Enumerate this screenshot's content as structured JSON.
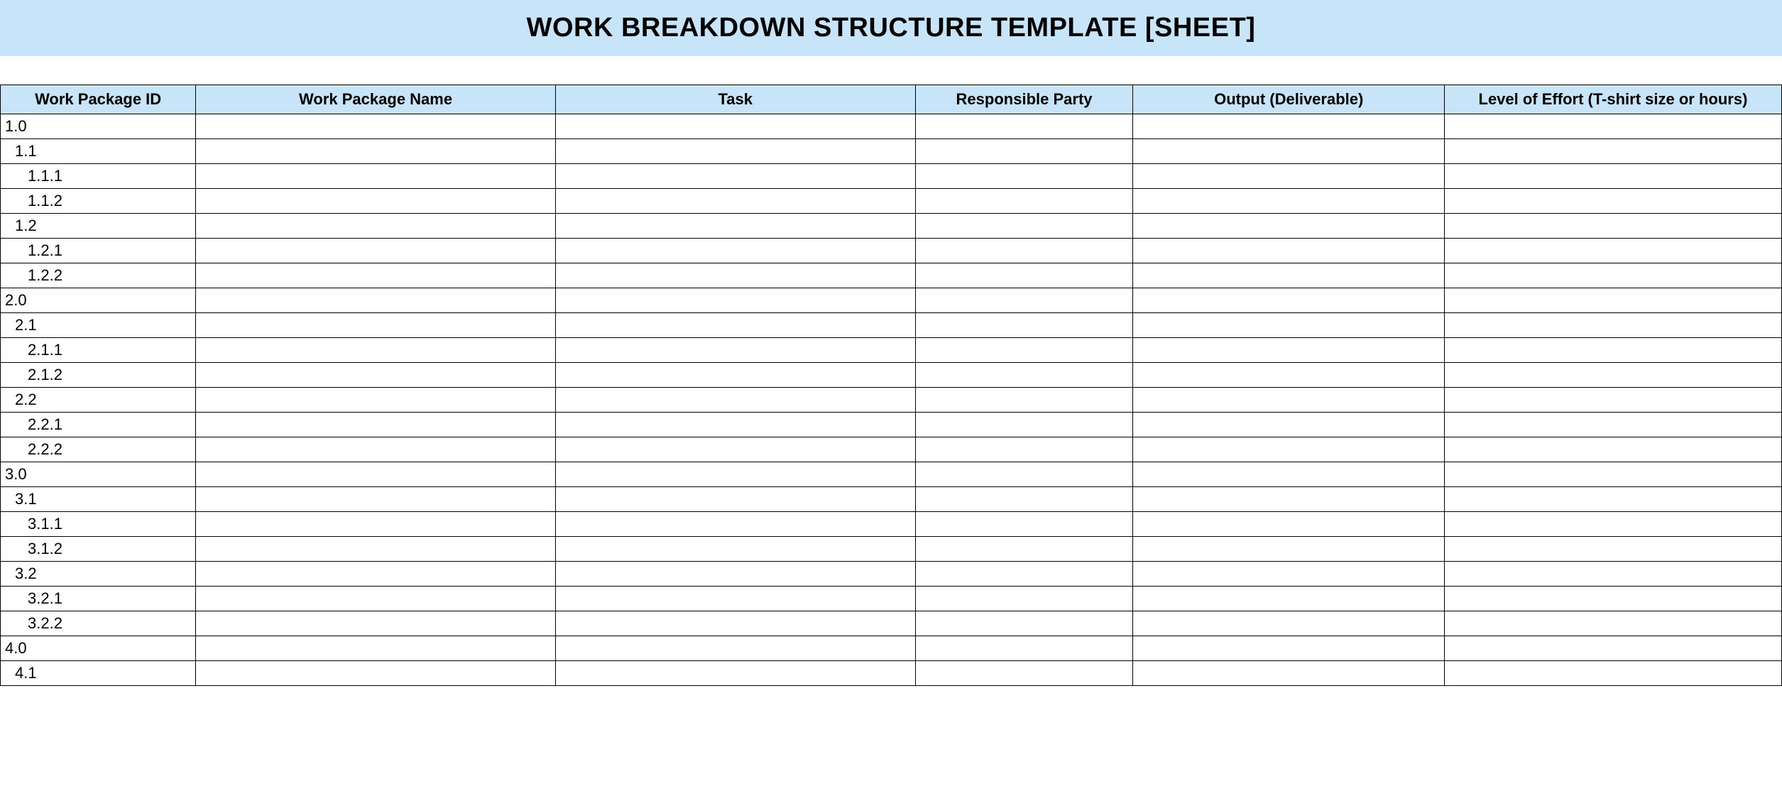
{
  "title": "WORK BREAKDOWN STRUCTURE TEMPLATE [SHEET]",
  "colors": {
    "header_bg": "#c8e4f8",
    "border": "#000000",
    "text": "#000000",
    "page_bg": "#ffffff"
  },
  "typography": {
    "title_fontsize": 38,
    "title_weight": "bold",
    "header_fontsize": 22,
    "header_weight": "bold",
    "cell_fontsize": 22
  },
  "table": {
    "columns": [
      {
        "key": "id",
        "label": "Work Package ID",
        "width_pct": 11.3
      },
      {
        "key": "name",
        "label": "Work Package Name",
        "width_pct": 20.8
      },
      {
        "key": "task",
        "label": "Task",
        "width_pct": 20.8
      },
      {
        "key": "party",
        "label": "Responsible Party",
        "width_pct": 12.6
      },
      {
        "key": "output",
        "label": "Output (Deliverable)",
        "width_pct": 18.0
      },
      {
        "key": "effort",
        "label": "Level of Effort (T-shirt size or hours)",
        "width_pct": 19.5
      }
    ],
    "rows": [
      {
        "id": "1.0",
        "indent": 0,
        "name": "",
        "task": "",
        "party": "",
        "output": "",
        "effort": ""
      },
      {
        "id": "1.1",
        "indent": 1,
        "name": "",
        "task": "",
        "party": "",
        "output": "",
        "effort": ""
      },
      {
        "id": "1.1.1",
        "indent": 2,
        "name": "",
        "task": "",
        "party": "",
        "output": "",
        "effort": ""
      },
      {
        "id": "1.1.2",
        "indent": 2,
        "name": "",
        "task": "",
        "party": "",
        "output": "",
        "effort": ""
      },
      {
        "id": "1.2",
        "indent": 1,
        "name": "",
        "task": "",
        "party": "",
        "output": "",
        "effort": ""
      },
      {
        "id": "1.2.1",
        "indent": 2,
        "name": "",
        "task": "",
        "party": "",
        "output": "",
        "effort": ""
      },
      {
        "id": "1.2.2",
        "indent": 2,
        "name": "",
        "task": "",
        "party": "",
        "output": "",
        "effort": ""
      },
      {
        "id": "2.0",
        "indent": 0,
        "name": "",
        "task": "",
        "party": "",
        "output": "",
        "effort": ""
      },
      {
        "id": "2.1",
        "indent": 1,
        "name": "",
        "task": "",
        "party": "",
        "output": "",
        "effort": ""
      },
      {
        "id": "2.1.1",
        "indent": 2,
        "name": "",
        "task": "",
        "party": "",
        "output": "",
        "effort": ""
      },
      {
        "id": "2.1.2",
        "indent": 2,
        "name": "",
        "task": "",
        "party": "",
        "output": "",
        "effort": ""
      },
      {
        "id": "2.2",
        "indent": 1,
        "name": "",
        "task": "",
        "party": "",
        "output": "",
        "effort": ""
      },
      {
        "id": "2.2.1",
        "indent": 2,
        "name": "",
        "task": "",
        "party": "",
        "output": "",
        "effort": ""
      },
      {
        "id": "2.2.2",
        "indent": 2,
        "name": "",
        "task": "",
        "party": "",
        "output": "",
        "effort": ""
      },
      {
        "id": "3.0",
        "indent": 0,
        "name": "",
        "task": "",
        "party": "",
        "output": "",
        "effort": ""
      },
      {
        "id": "3.1",
        "indent": 1,
        "name": "",
        "task": "",
        "party": "",
        "output": "",
        "effort": ""
      },
      {
        "id": "3.1.1",
        "indent": 2,
        "name": "",
        "task": "",
        "party": "",
        "output": "",
        "effort": ""
      },
      {
        "id": "3.1.2",
        "indent": 2,
        "name": "",
        "task": "",
        "party": "",
        "output": "",
        "effort": ""
      },
      {
        "id": "3.2",
        "indent": 1,
        "name": "",
        "task": "",
        "party": "",
        "output": "",
        "effort": ""
      },
      {
        "id": "3.2.1",
        "indent": 2,
        "name": "",
        "task": "",
        "party": "",
        "output": "",
        "effort": ""
      },
      {
        "id": "3.2.2",
        "indent": 2,
        "name": "",
        "task": "",
        "party": "",
        "output": "",
        "effort": ""
      },
      {
        "id": "4.0",
        "indent": 0,
        "name": "",
        "task": "",
        "party": "",
        "output": "",
        "effort": ""
      },
      {
        "id": "4.1",
        "indent": 1,
        "name": "",
        "task": "",
        "party": "",
        "output": "",
        "effort": ""
      }
    ]
  }
}
